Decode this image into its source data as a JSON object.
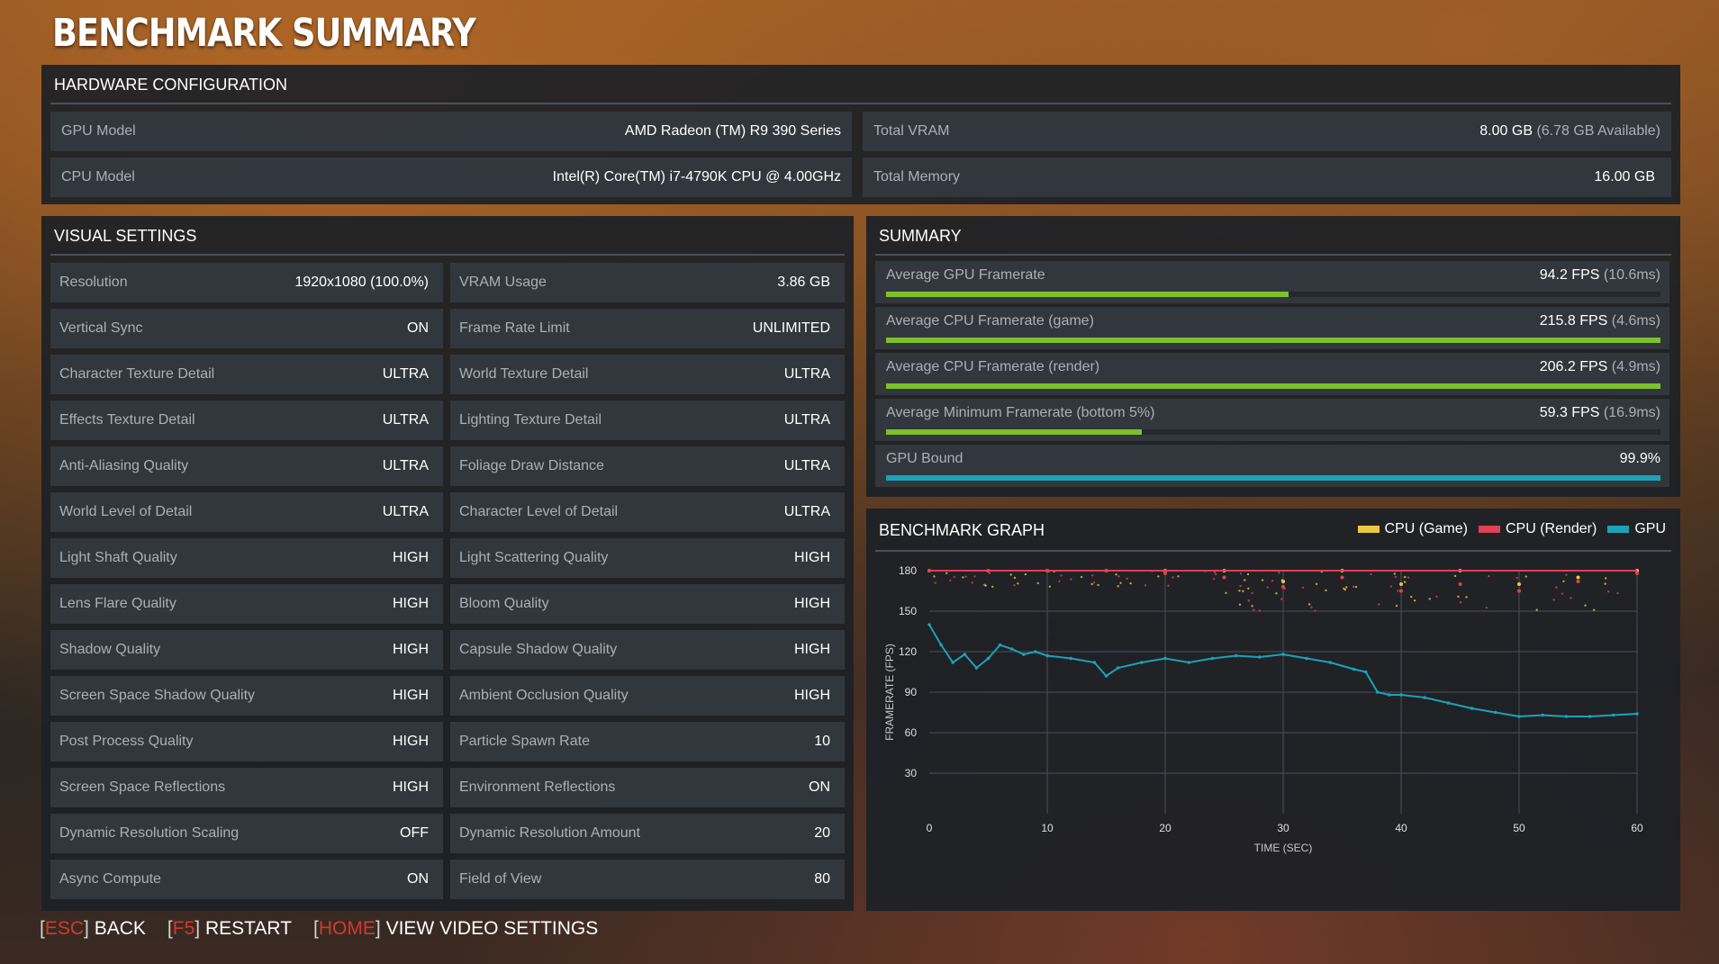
{
  "title": "BENCHMARK SUMMARY",
  "hardware": {
    "heading": "HARDWARE CONFIGURATION",
    "gpu_label": "GPU Model",
    "gpu_value": "AMD Radeon (TM) R9 390 Series",
    "cpu_label": "CPU Model",
    "cpu_value": "Intel(R) Core(TM) i7-4790K CPU @ 4.00GHz",
    "vram_label": "Total VRAM",
    "vram_value": "8.00 GB",
    "vram_available": "(6.78 GB Available)",
    "mem_label": "Total Memory",
    "mem_value": "16.00 GB"
  },
  "visual": {
    "heading": "VISUAL SETTINGS",
    "left": [
      {
        "label": "Resolution",
        "value": "1920x1080 (100.0%)"
      },
      {
        "label": "Vertical Sync",
        "value": "ON"
      },
      {
        "label": "Character Texture Detail",
        "value": "ULTRA"
      },
      {
        "label": "Effects Texture Detail",
        "value": "ULTRA"
      },
      {
        "label": "Anti-Aliasing Quality",
        "value": "ULTRA"
      },
      {
        "label": "World Level of Detail",
        "value": "ULTRA"
      },
      {
        "label": "Light Shaft Quality",
        "value": "HIGH"
      },
      {
        "label": "Lens Flare Quality",
        "value": "HIGH"
      },
      {
        "label": "Shadow Quality",
        "value": "HIGH"
      },
      {
        "label": "Screen Space Shadow Quality",
        "value": "HIGH"
      },
      {
        "label": "Post Process Quality",
        "value": "HIGH"
      },
      {
        "label": "Screen Space Reflections",
        "value": "HIGH"
      },
      {
        "label": "Dynamic Resolution Scaling",
        "value": "OFF"
      },
      {
        "label": "Async Compute",
        "value": "ON"
      }
    ],
    "right": [
      {
        "label": "VRAM Usage",
        "value": "3.86 GB"
      },
      {
        "label": "Frame Rate Limit",
        "value": "UNLIMITED"
      },
      {
        "label": "World Texture Detail",
        "value": "ULTRA"
      },
      {
        "label": "Lighting Texture Detail",
        "value": "ULTRA"
      },
      {
        "label": "Foliage Draw Distance",
        "value": "ULTRA"
      },
      {
        "label": "Character Level of Detail",
        "value": "ULTRA"
      },
      {
        "label": "Light Scattering Quality",
        "value": "HIGH"
      },
      {
        "label": "Bloom Quality",
        "value": "HIGH"
      },
      {
        "label": "Capsule Shadow Quality",
        "value": "HIGH"
      },
      {
        "label": "Ambient Occlusion Quality",
        "value": "HIGH"
      },
      {
        "label": "Particle Spawn Rate",
        "value": "10"
      },
      {
        "label": "Environment Reflections",
        "value": "ON"
      },
      {
        "label": "Dynamic Resolution Amount",
        "value": "20"
      },
      {
        "label": "Field of View",
        "value": "80"
      }
    ]
  },
  "summary": {
    "heading": "SUMMARY",
    "rows": [
      {
        "label": "Average GPU Framerate",
        "value": "94.2 FPS",
        "sub": "(10.6ms)",
        "level": 0.52,
        "color": "#7cc12a"
      },
      {
        "label": "Average CPU Framerate (game)",
        "value": "215.8 FPS",
        "sub": "(4.6ms)",
        "level": 1.0,
        "color": "#7cc12a"
      },
      {
        "label": "Average CPU Framerate (render)",
        "value": "206.2 FPS",
        "sub": "(4.9ms)",
        "level": 1.0,
        "color": "#7cc12a"
      },
      {
        "label": "Average Minimum Framerate (bottom 5%)",
        "value": "59.3 FPS",
        "sub": "(16.9ms)",
        "level": 0.33,
        "color": "#7cc12a"
      },
      {
        "label": "GPU Bound",
        "value": "99.9%",
        "sub": "",
        "level": 1.0,
        "color": "#1aa3b8"
      }
    ]
  },
  "graph": {
    "heading": "BENCHMARK GRAPH",
    "legend": [
      {
        "name": "CPU (Game)",
        "color": "#e8c940"
      },
      {
        "name": "CPU (Render)",
        "color": "#e04055"
      },
      {
        "name": "GPU",
        "color": "#1aa3b8"
      }
    ]
  },
  "chart_data": {
    "type": "scatter",
    "title": "BENCHMARK GRAPH",
    "xlabel": "TIME (SEC)",
    "ylabel": "FRAMERATE (FPS)",
    "xlim": [
      0,
      60
    ],
    "ylim": [
      0,
      180
    ],
    "x_ticks": [
      0,
      10,
      20,
      30,
      40,
      50,
      60
    ],
    "y_ticks": [
      30,
      60,
      90,
      120,
      150,
      180
    ],
    "grid": true,
    "legend_position": "top-right",
    "series": [
      {
        "name": "CPU (Game)",
        "color": "#e8c940",
        "x": [
          0,
          5,
          10,
          15,
          20,
          25,
          30,
          35,
          40,
          45,
          50,
          55,
          60
        ],
        "y": [
          180,
          180,
          180,
          180,
          180,
          180,
          172,
          180,
          170,
          180,
          170,
          175,
          180
        ]
      },
      {
        "name": "CPU (Render)",
        "color": "#e04055",
        "x": [
          0,
          5,
          10,
          15,
          20,
          25,
          30,
          35,
          40,
          45,
          50,
          55,
          60
        ],
        "y": [
          180,
          180,
          180,
          180,
          178,
          175,
          168,
          175,
          165,
          170,
          165,
          172,
          178
        ]
      },
      {
        "name": "GPU",
        "color": "#1aa3b8",
        "x": [
          0,
          1,
          2,
          3,
          4,
          5,
          6,
          7,
          8,
          9,
          10,
          12,
          14,
          15,
          16,
          18,
          20,
          22,
          24,
          26,
          28,
          30,
          32,
          34,
          36,
          37,
          38,
          39,
          40,
          42,
          44,
          46,
          48,
          50,
          52,
          54,
          56,
          58,
          60
        ],
        "y": [
          140,
          125,
          112,
          118,
          108,
          115,
          125,
          122,
          118,
          120,
          117,
          115,
          112,
          102,
          108,
          112,
          115,
          112,
          115,
          117,
          116,
          118,
          115,
          112,
          107,
          105,
          90,
          88,
          88,
          86,
          82,
          78,
          75,
          72,
          73,
          72,
          72,
          73,
          74
        ]
      }
    ]
  },
  "footer": [
    {
      "key": "ESC",
      "action": "BACK"
    },
    {
      "key": "F5",
      "action": "RESTART"
    },
    {
      "key": "HOME",
      "action": "VIEW VIDEO SETTINGS"
    }
  ]
}
